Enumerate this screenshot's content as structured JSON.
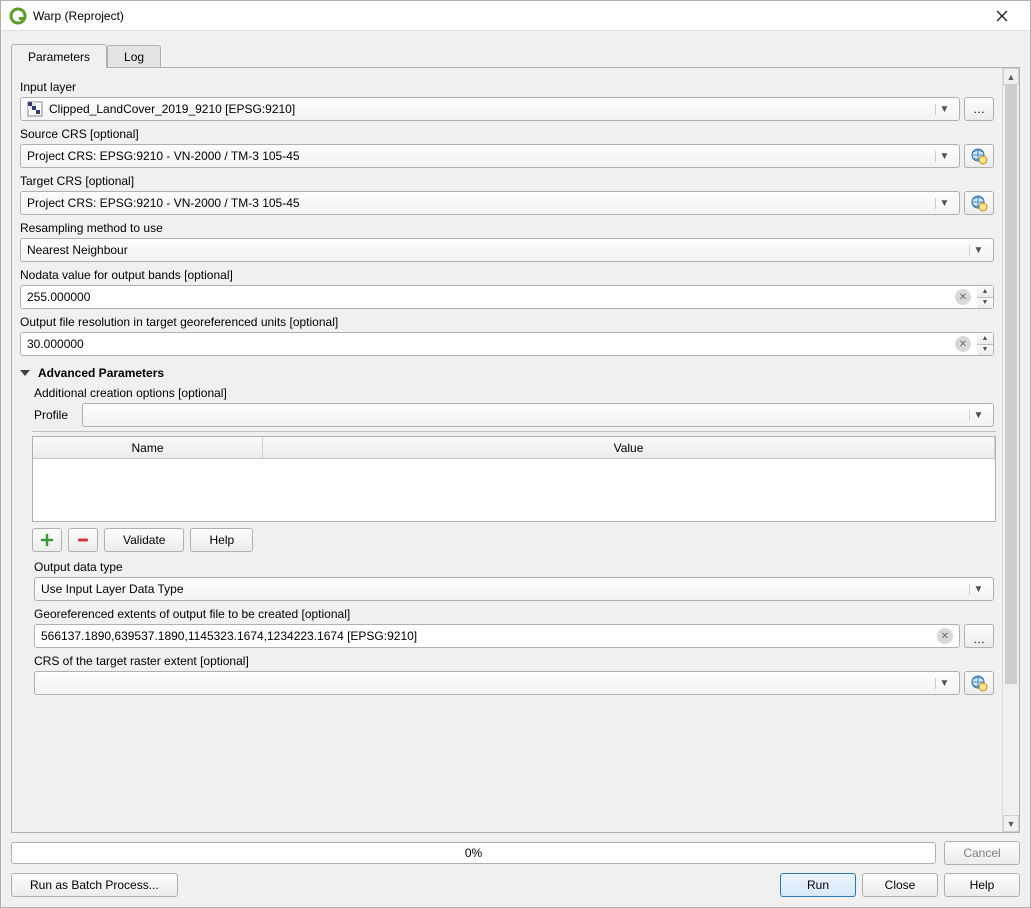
{
  "window": {
    "title": "Warp (Reproject)"
  },
  "tabs": {
    "parameters": "Parameters",
    "log": "Log",
    "active": "parameters"
  },
  "inputLayer": {
    "label": "Input layer",
    "value": "Clipped_LandCover_2019_9210 [EPSG:9210]"
  },
  "sourceCrs": {
    "label": "Source CRS [optional]",
    "value": "Project CRS: EPSG:9210 - VN-2000 / TM-3 105-45"
  },
  "targetCrs": {
    "label": "Target CRS [optional]",
    "value": "Project CRS: EPSG:9210 - VN-2000 / TM-3 105-45"
  },
  "resampling": {
    "label": "Resampling method to use",
    "value": "Nearest Neighbour"
  },
  "nodata": {
    "label": "Nodata value for output bands [optional]",
    "value": "255.000000"
  },
  "resolution": {
    "label": "Output file resolution in target georeferenced units [optional]",
    "value": "30.000000"
  },
  "advanced": {
    "title": "Advanced Parameters",
    "creationOptions": {
      "label": "Additional creation options [optional]",
      "profileLabel": "Profile",
      "profileValue": "",
      "columns": {
        "name": "Name",
        "value": "Value"
      },
      "validate": "Validate",
      "help": "Help"
    },
    "outputDataType": {
      "label": "Output data type",
      "value": "Use Input Layer Data Type"
    },
    "extents": {
      "label": "Georeferenced extents of output file to be created [optional]",
      "value": "566137.1890,639537.1890,1145323.1674,1234223.1674 [EPSG:9210]"
    },
    "extentCrs": {
      "label": "CRS of the target raster extent [optional]",
      "value": ""
    }
  },
  "progress": {
    "text": "0%",
    "cancel": "Cancel"
  },
  "footer": {
    "batch": "Run as Batch Process...",
    "run": "Run",
    "close": "Close",
    "help": "Help"
  },
  "scrollbar": {
    "thumb_top_pct": 0,
    "thumb_height_pct": 82
  }
}
